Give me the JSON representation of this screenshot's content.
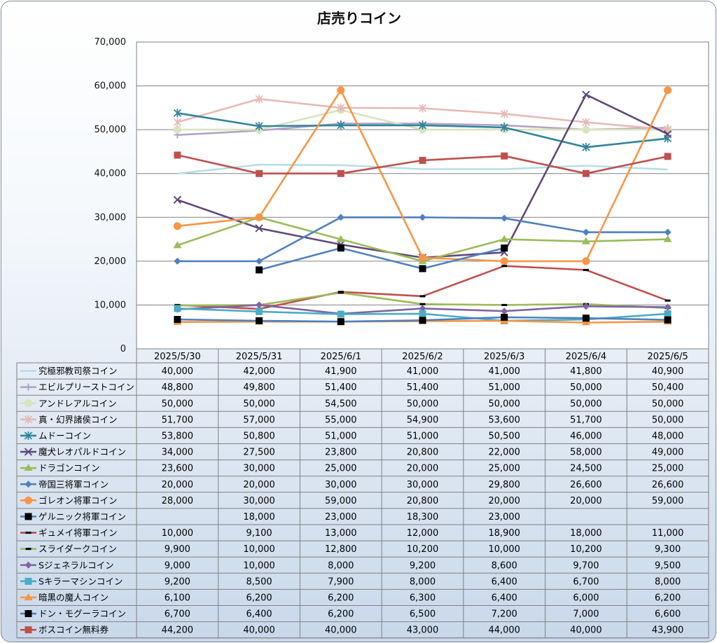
{
  "chart_data": {
    "type": "line",
    "title": "店売りコイン",
    "ylim": [
      0,
      70000
    ],
    "yticks": [
      0,
      10000,
      20000,
      30000,
      40000,
      50000,
      60000,
      70000
    ],
    "ytick_labels": [
      "0",
      "10,000",
      "20,000",
      "30,000",
      "40,000",
      "50,000",
      "60,000",
      "70,000"
    ],
    "grid": true,
    "legend": "data-table-below",
    "categories": [
      "2025/5/30",
      "2025/5/31",
      "2025/6/1",
      "2025/6/2",
      "2025/6/3",
      "2025/6/4",
      "2025/6/5"
    ],
    "series": [
      {
        "name": "究極邪教司祭コイン",
        "color": "#b7dde8",
        "marker": "none",
        "values": [
          40000,
          42000,
          41900,
          41000,
          41000,
          41800,
          40900
        ],
        "labels": [
          "40,000",
          "42,000",
          "41,900",
          "41,000",
          "41,000",
          "41,800",
          "40,900"
        ]
      },
      {
        "name": "エビルプリーストコイン",
        "color": "#b3a2c7",
        "marker": "plus",
        "values": [
          48800,
          49800,
          51400,
          51400,
          51000,
          50000,
          50400
        ],
        "labels": [
          "48,800",
          "49,800",
          "51,400",
          "51,400",
          "51,000",
          "50,000",
          "50,400"
        ]
      },
      {
        "name": "アンドレアルコイン",
        "color": "#d7e4bd",
        "marker": "circle",
        "values": [
          50000,
          50000,
          54500,
          50000,
          50000,
          50000,
          50000
        ],
        "labels": [
          "50,000",
          "50,000",
          "54,500",
          "50,000",
          "50,000",
          "50,000",
          "50,000"
        ]
      },
      {
        "name": "真・幻界諸侯コイン",
        "color": "#e6b9b8",
        "marker": "star",
        "values": [
          51700,
          57000,
          55000,
          54900,
          53600,
          51700,
          50000
        ],
        "labels": [
          "51,700",
          "57,000",
          "55,000",
          "54,900",
          "53,600",
          "51,700",
          "50,000"
        ]
      },
      {
        "name": "ムドーコイン",
        "color": "#31859c",
        "marker": "star",
        "values": [
          53800,
          50800,
          51000,
          51000,
          50500,
          46000,
          48000
        ],
        "labels": [
          "53,800",
          "50,800",
          "51,000",
          "51,000",
          "50,500",
          "46,000",
          "48,000"
        ]
      },
      {
        "name": "魔犬レオパルドコイン",
        "color": "#604a7b",
        "marker": "x",
        "values": [
          34000,
          27500,
          23800,
          20800,
          22000,
          58000,
          49000
        ],
        "labels": [
          "34,000",
          "27,500",
          "23,800",
          "20,800",
          "22,000",
          "58,000",
          "49,000"
        ]
      },
      {
        "name": "ドラゴンコイン",
        "color": "#9bbb59",
        "marker": "triangle",
        "values": [
          23600,
          30000,
          25000,
          20000,
          25000,
          24500,
          25000
        ],
        "labels": [
          "23,600",
          "30,000",
          "25,000",
          "20,000",
          "25,000",
          "24,500",
          "25,000"
        ]
      },
      {
        "name": "帝国三将軍コイン",
        "color": "#4f81bd",
        "marker": "diamond",
        "values": [
          20000,
          20000,
          30000,
          30000,
          29800,
          26600,
          26600
        ],
        "labels": [
          "20,000",
          "20,000",
          "30,000",
          "30,000",
          "29,800",
          "26,600",
          "26,600"
        ]
      },
      {
        "name": "ゴレオン将軍コイン",
        "color": "#f79646",
        "marker": "circle",
        "values": [
          28000,
          30000,
          59000,
          20800,
          20000,
          20000,
          59000
        ],
        "labels": [
          "28,000",
          "30,000",
          "59,000",
          "20,800",
          "20,000",
          "20,000",
          "59,000"
        ]
      },
      {
        "name": "ゲルニック将軍コイン",
        "color": "#4f81bd",
        "marker": "square-black",
        "values": [
          null,
          18000,
          23000,
          18300,
          23000,
          null,
          null
        ],
        "labels": [
          "",
          "18,000",
          "23,000",
          "18,300",
          "23,000",
          "",
          ""
        ]
      },
      {
        "name": "ギュメイ将軍コイン",
        "color": "#c0504d",
        "marker": "dash",
        "values": [
          10000,
          9100,
          13000,
          12000,
          18900,
          18000,
          11000
        ],
        "labels": [
          "10,000",
          "9,100",
          "13,000",
          "12,000",
          "18,900",
          "18,000",
          "11,000"
        ]
      },
      {
        "name": "スライダークコイン",
        "color": "#9bbb59",
        "marker": "dash",
        "values": [
          9900,
          10000,
          12800,
          10200,
          10000,
          10200,
          9300
        ],
        "labels": [
          "9,900",
          "10,000",
          "12,800",
          "10,200",
          "10,000",
          "10,200",
          "9,300"
        ]
      },
      {
        "name": "Sジェネラルコイン",
        "color": "#8064a2",
        "marker": "diamond",
        "values": [
          9000,
          10000,
          8000,
          9200,
          8600,
          9700,
          9500
        ],
        "labels": [
          "9,000",
          "10,000",
          "8,000",
          "9,200",
          "8,600",
          "9,700",
          "9,500"
        ]
      },
      {
        "name": "Sキラーマシンコイン",
        "color": "#4bacc6",
        "marker": "square",
        "values": [
          9200,
          8500,
          7900,
          8000,
          6400,
          6700,
          8000
        ],
        "labels": [
          "9,200",
          "8,500",
          "7,900",
          "8,000",
          "6,400",
          "6,700",
          "8,000"
        ]
      },
      {
        "name": "暗黒の魔人コイン",
        "color": "#f79646",
        "marker": "triangle",
        "values": [
          6100,
          6200,
          6200,
          6300,
          6400,
          6000,
          6200
        ],
        "labels": [
          "6,100",
          "6,200",
          "6,200",
          "6,300",
          "6,400",
          "6,000",
          "6,200"
        ]
      },
      {
        "name": "ドン・モグーラコイン",
        "color": "#4f81bd",
        "marker": "square-black",
        "values": [
          6700,
          6400,
          6200,
          6500,
          7200,
          7000,
          6600
        ],
        "labels": [
          "6,700",
          "6,400",
          "6,200",
          "6,500",
          "7,200",
          "7,000",
          "6,600"
        ]
      },
      {
        "name": "ボスコイン無料券",
        "color": "#c0504d",
        "marker": "square",
        "values": [
          44200,
          40000,
          40000,
          43000,
          44000,
          40000,
          43900
        ],
        "labels": [
          "44,200",
          "40,000",
          "40,000",
          "43,000",
          "44,000",
          "40,000",
          "43,900"
        ]
      }
    ]
  }
}
